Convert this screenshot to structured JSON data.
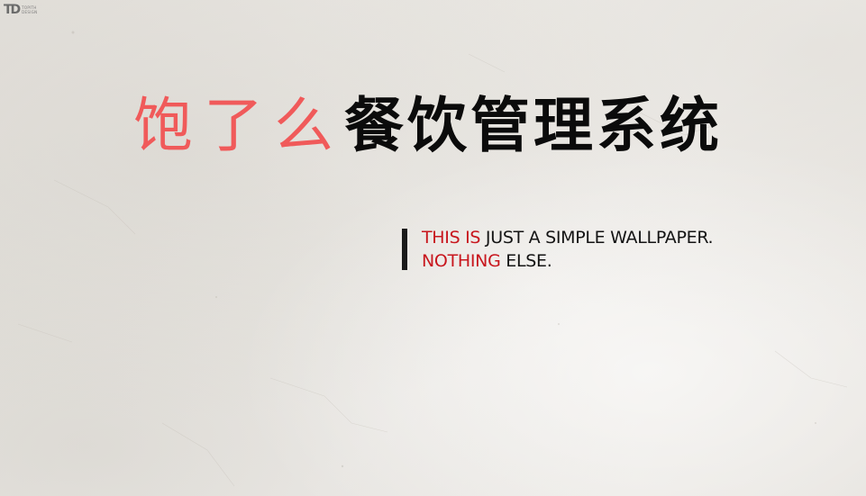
{
  "logo": {
    "mark": "TD",
    "line1": "TOPITH",
    "line2": "DESIGN"
  },
  "title": {
    "red_part": "饱了么",
    "black_part": "餐饮管理系统"
  },
  "tagline": {
    "line1_red": "THIS IS",
    "line1_dark": " JUST A SIMPLE WALLPAPER.",
    "line2_red": "NOTHING",
    "line2_dark": " ELSE."
  },
  "colors": {
    "title_red": "#f05a5a",
    "tag_red": "#c8161d",
    "text_dark": "#141414"
  }
}
